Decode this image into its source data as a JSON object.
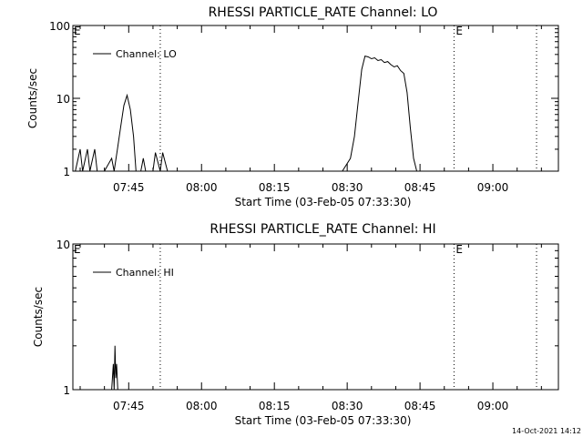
{
  "chart_data": [
    {
      "type": "line",
      "title": "RHESSI PARTICLE_RATE Channel: LO",
      "xlabel": "Start Time (03-Feb-05 07:33:30)",
      "ylabel": "Counts/sec",
      "yscale": "log",
      "ylim": [
        1,
        100
      ],
      "ytick_labels": [
        "1",
        "10",
        "100"
      ],
      "xlim": [
        "07:33:30",
        "09:13:30"
      ],
      "xtick_labels": [
        "07:45",
        "08:00",
        "08:15",
        "08:30",
        "08:45",
        "09:00"
      ],
      "legend": "top-left",
      "grid": false,
      "series": [
        {
          "name": "Channel: LO",
          "x": [
            "07:34:00",
            "07:35:00",
            "07:35:30",
            "07:36:30",
            "07:37:00",
            "07:38:00",
            "07:38:30",
            "07:39:30",
            "07:40:00",
            "07:41:30",
            "07:42:00",
            "07:42:40",
            "07:43:20",
            "07:44:00",
            "07:44:40",
            "07:45:20",
            "07:46:00",
            "07:46:30",
            "07:47:30",
            "07:48:00",
            "07:48:30",
            "07:49:30",
            "07:50:00",
            "07:50:30",
            "07:51:30",
            "07:52:00",
            "07:53:00",
            "07:54:00",
            "08:00:00",
            "08:15:00",
            "08:29:00",
            "08:30:40",
            "08:31:30",
            "08:32:20",
            "08:33:00",
            "08:33:40",
            "08:34:20",
            "08:35:00",
            "08:35:40",
            "08:36:20",
            "08:37:00",
            "08:37:40",
            "08:38:20",
            "08:39:00",
            "08:39:40",
            "08:40:20",
            "08:41:00",
            "08:41:40",
            "08:42:20",
            "08:43:00",
            "08:43:40",
            "08:44:20",
            "08:46:00",
            "09:00:00",
            "09:13:30"
          ],
          "y": [
            1,
            2,
            1,
            2,
            1,
            2,
            1,
            1,
            1,
            1.5,
            1,
            2,
            4,
            8,
            11,
            7,
            3,
            1,
            1,
            1.5,
            1,
            1,
            1,
            1.8,
            1,
            1.8,
            1,
            1,
            1,
            1,
            1,
            1.5,
            3,
            10,
            25,
            38,
            37,
            35,
            36,
            33,
            34,
            31,
            32,
            29,
            27,
            28,
            24,
            22,
            12,
            4,
            1.5,
            1,
            1,
            1,
            1
          ]
        }
      ],
      "annotations": [
        "E",
        "E"
      ]
    },
    {
      "type": "line",
      "title": "RHESSI PARTICLE_RATE Channel: HI",
      "xlabel": "Start Time (03-Feb-05 07:33:30)",
      "ylabel": "Counts/sec",
      "yscale": "log",
      "ylim": [
        1,
        10
      ],
      "ytick_labels": [
        "1",
        "10"
      ],
      "xlim": [
        "07:33:30",
        "09:13:30"
      ],
      "xtick_labels": [
        "07:45",
        "08:00",
        "08:15",
        "08:30",
        "08:45",
        "09:00"
      ],
      "legend": "top-left",
      "grid": false,
      "series": [
        {
          "name": "Channel: HI",
          "x": [
            "07:34:00",
            "07:41:30",
            "07:41:50",
            "07:42:00",
            "07:42:10",
            "07:42:20",
            "07:42:30",
            "07:42:45",
            "09:13:30"
          ],
          "y": [
            1,
            1,
            1.5,
            1,
            2,
            1.2,
            1.5,
            1,
            1
          ]
        }
      ],
      "annotations": [
        "E",
        "E"
      ]
    }
  ],
  "footer": {
    "timestamp": "14-Oct-2021 14:12"
  }
}
